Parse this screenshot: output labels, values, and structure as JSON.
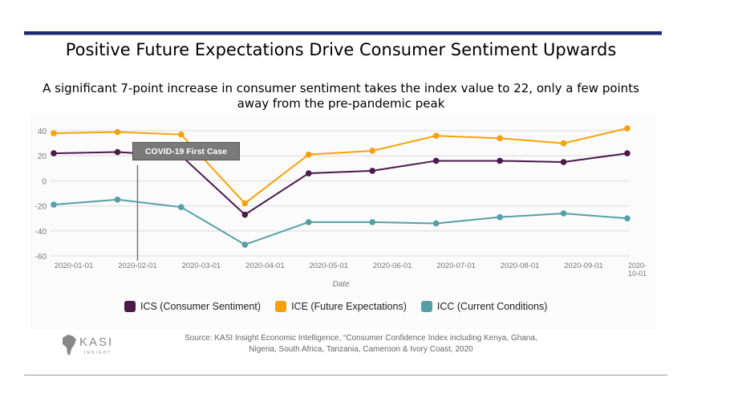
{
  "header": {
    "title": "Positive Future Expectations Drive Consumer Sentiment Upwards",
    "subtitle_line1": "A significant 7-point increase in consumer sentiment takes the index value to 22, only a few points",
    "subtitle_line2": "away from the pre-pandemic peak"
  },
  "chart_data": {
    "type": "line",
    "xlabel": "Date",
    "ylabel": "",
    "x": [
      "2020-01-01",
      "2020-02-01",
      "2020-03-01",
      "2020-04-01",
      "2020-05-01",
      "2020-06-01",
      "2020-07-01",
      "2020-08-01",
      "2020-09-01",
      "2020-10-01"
    ],
    "yticks": [
      40,
      20,
      0,
      -20,
      -40,
      -60
    ],
    "ylim": [
      -60,
      40
    ],
    "grid": true,
    "legend_position": "bottom",
    "annotation": {
      "label": "COVID-19 First Case",
      "x": "2020-02-01"
    },
    "series": [
      {
        "name": "ICS (Consumer Sentiment)",
        "color": "#4a1a4a",
        "values": [
          22,
          23,
          20,
          -27,
          6,
          8,
          16,
          16,
          15,
          22
        ]
      },
      {
        "name": "ICE (Future Expectations)",
        "color": "#f5a20a",
        "values": [
          38,
          39,
          37,
          -18,
          21,
          24,
          36,
          34,
          30,
          42
        ]
      },
      {
        "name": "ICC (Current Conditions)",
        "color": "#55a0a6",
        "values": [
          -19,
          -15,
          -21,
          -51,
          -33,
          -33,
          -34,
          -29,
          -26,
          -30
        ]
      }
    ]
  },
  "footer": {
    "source_line1": "Source: KASI Insight Economic Intelligence, “Consumer Confidence Index including Kenya, Ghana,",
    "source_line2": "Nigeria, South Africa, Tanzania, Cameroon & Ivory Coast, 2020",
    "logo_text": "KASI",
    "logo_subtext": "INSIGHT"
  }
}
